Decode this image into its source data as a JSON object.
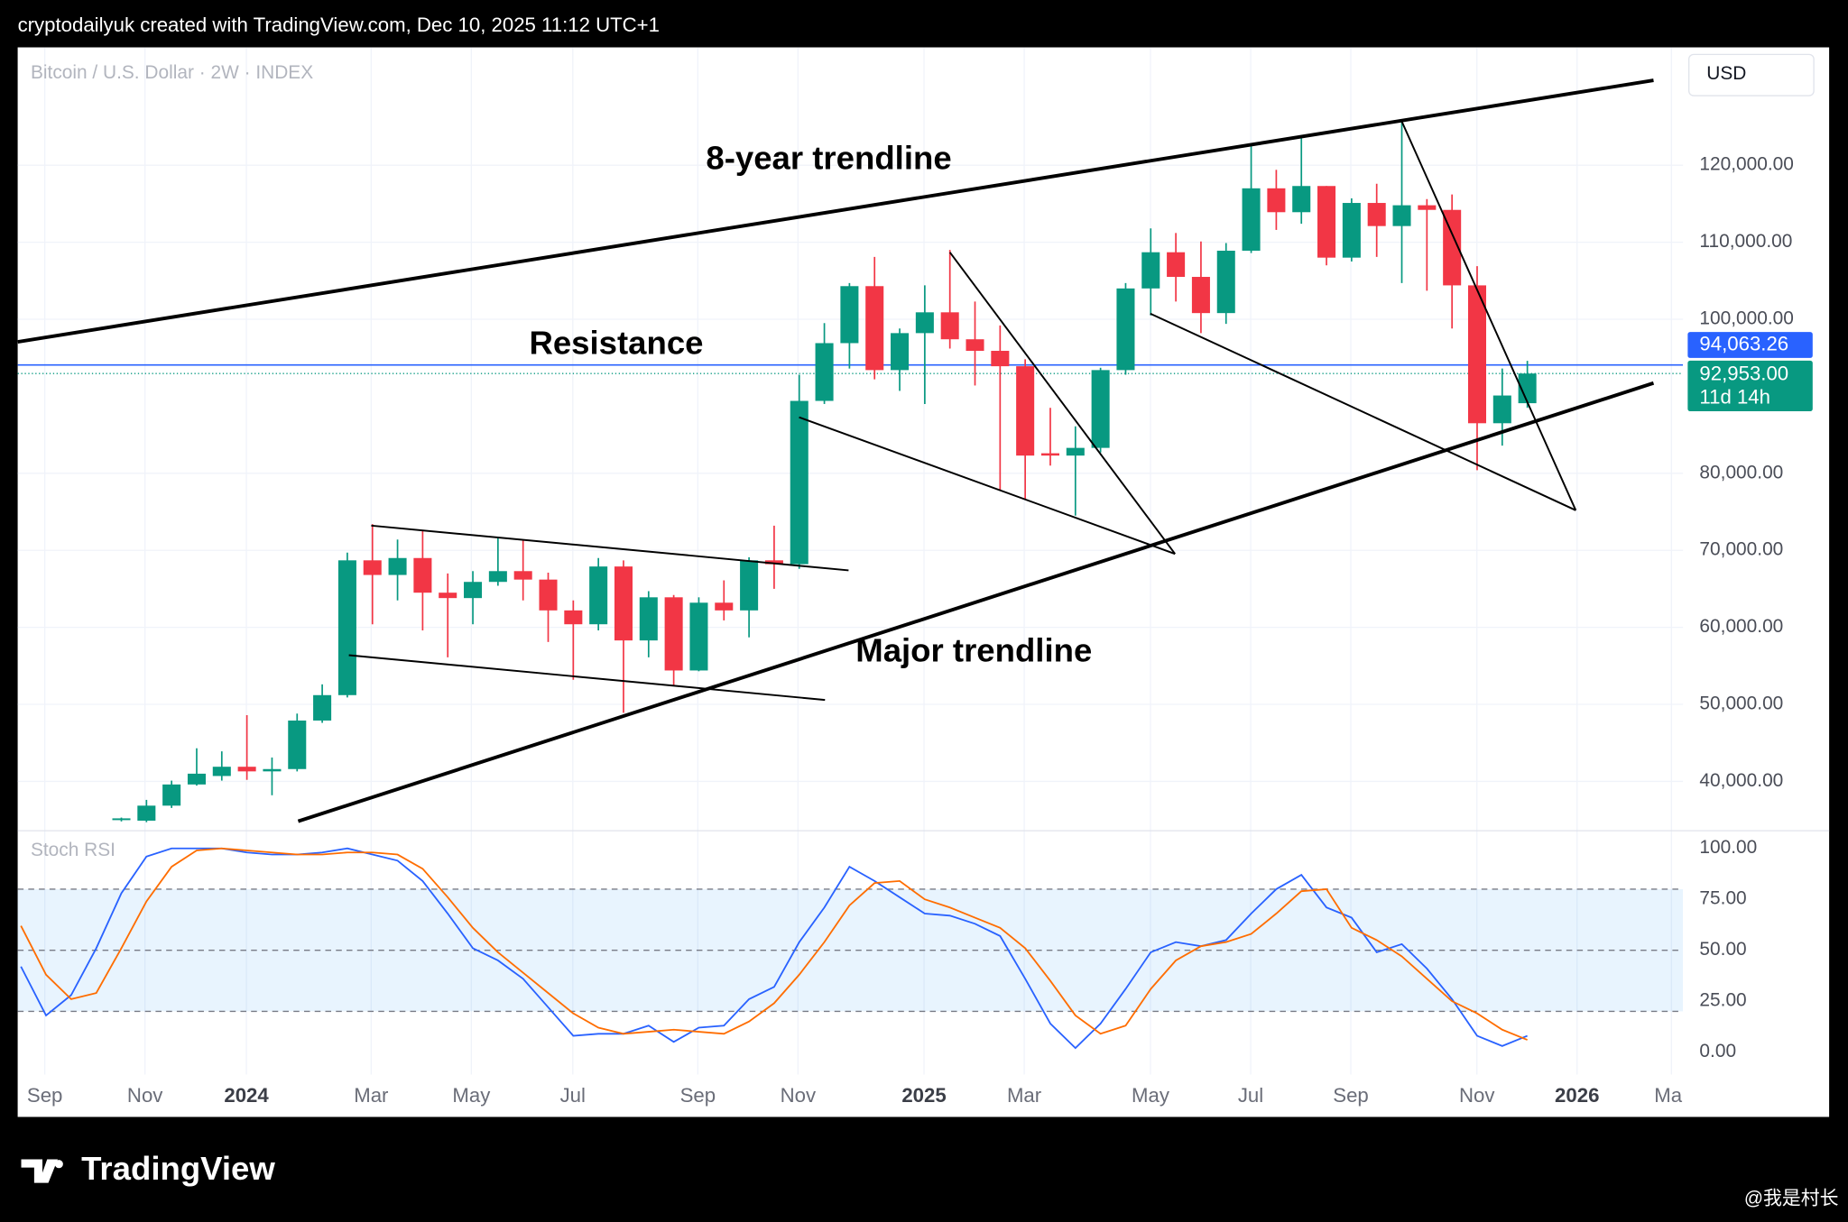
{
  "header": {
    "text": "cryptodailyuk created with TradingView.com, Dec 10, 2025 11:12 UTC+1"
  },
  "footer": {
    "logo": "TradingView",
    "watermark": "@我是村长"
  },
  "chart_data": [
    {
      "type": "candlestick",
      "title": "Bitcoin / U.S. Dollar · 2W · INDEX",
      "currency": "USD",
      "categories": [
        null,
        null,
        null,
        null,
        null,
        null,
        null,
        null,
        null,
        null,
        null,
        null,
        null,
        null,
        null,
        null,
        null,
        null,
        null,
        null,
        null,
        null,
        null,
        null,
        null,
        null,
        null,
        null,
        null,
        null,
        null,
        null,
        null,
        null,
        null,
        null,
        null,
        null,
        null,
        null,
        null,
        null,
        null,
        null,
        null,
        null,
        null,
        null,
        null,
        null,
        null,
        null,
        null,
        null,
        null,
        null,
        null,
        null,
        null,
        null,
        null
      ],
      "open": [
        null,
        null,
        null,
        null,
        35000,
        34900,
        36850,
        39600,
        40700,
        41900,
        41300,
        41600,
        47900,
        51200,
        68700,
        66800,
        69000,
        64500,
        63800,
        65900,
        67300,
        66200,
        62200,
        60400,
        67900,
        58300,
        63900,
        54400,
        63200,
        62200,
        68700,
        68200,
        89400,
        96900,
        104300,
        93400,
        98200,
        100900,
        97400,
        95900,
        93900,
        82600,
        82300,
        83300,
        93400,
        104000,
        108700,
        105500,
        100800,
        108900,
        117000,
        113900,
        117300,
        108000,
        115100,
        112100,
        114800,
        114200,
        104400,
        86500,
        89100
      ],
      "high": [
        null,
        null,
        null,
        null,
        35300,
        37600,
        40100,
        44300,
        43900,
        48600,
        43100,
        48800,
        52600,
        69700,
        73400,
        71400,
        72500,
        67000,
        67300,
        71600,
        71400,
        67100,
        63500,
        69000,
        68700,
        64700,
        64200,
        63900,
        66100,
        69100,
        73200,
        92800,
        99500,
        104700,
        108100,
        98800,
        104400,
        109000,
        102300,
        99200,
        94800,
        88500,
        86100,
        93700,
        104700,
        111800,
        111200,
        110100,
        109900,
        122800,
        119400,
        123900,
        117300,
        115700,
        117600,
        125800,
        115600,
        116200,
        106900,
        93600,
        94600
      ],
      "low": [
        null,
        null,
        null,
        null,
        34800,
        34700,
        36550,
        39450,
        40100,
        40200,
        38200,
        41300,
        47600,
        50900,
        60400,
        63500,
        59600,
        56100,
        60400,
        65400,
        63500,
        58100,
        53200,
        59600,
        48900,
        56100,
        52400,
        54300,
        60900,
        58700,
        65000,
        67600,
        89000,
        93600,
        92200,
        90700,
        89000,
        96200,
        91400,
        77800,
        76600,
        81000,
        74500,
        82700,
        92800,
        100500,
        102300,
        98200,
        99400,
        108600,
        111600,
        112400,
        107000,
        107500,
        108100,
        104700,
        103700,
        98800,
        80400,
        83600,
        88500
      ],
      "close": [
        null,
        null,
        null,
        null,
        35200,
        36850,
        39600,
        41000,
        41900,
        41300,
        41600,
        47900,
        51200,
        68700,
        66800,
        69000,
        64500,
        63800,
        65900,
        67300,
        66200,
        62200,
        60400,
        67900,
        58300,
        63900,
        54400,
        63200,
        62200,
        68700,
        68200,
        89400,
        96900,
        104300,
        93400,
        98200,
        100900,
        97400,
        95900,
        93900,
        82300,
        82300,
        83300,
        93400,
        104000,
        108700,
        105500,
        100800,
        108900,
        117000,
        113900,
        117300,
        108000,
        115100,
        112100,
        114800,
        114200,
        104400,
        86500,
        90100,
        92953
      ],
      "up_color": "#089981",
      "down_color": "#f23645",
      "xlim": [
        -0.13,
        66.2
      ],
      "ylim": [
        33600,
        135300
      ],
      "yticks": [
        {
          "value": 40000,
          "label": "40,000.00"
        },
        {
          "value": 50000,
          "label": "50,000.00"
        },
        {
          "value": 60000,
          "label": "60,000.00"
        },
        {
          "value": 70000,
          "label": "70,000.00"
        },
        {
          "value": 80000,
          "label": "80,000.00"
        },
        {
          "value": 100000,
          "label": "100,000.00"
        },
        {
          "value": 110000,
          "label": "110,000.00"
        },
        {
          "value": 120000,
          "label": "120,000.00"
        }
      ],
      "grid": true,
      "resistance": {
        "value": 94063.26,
        "label": "94,063.26",
        "color": "#2962ff"
      },
      "last_price": {
        "value": 92953,
        "label": "92,953.00",
        "countdown": "11d 14h"
      },
      "annotations": [
        "8-year trendline",
        "Resistance",
        "Major trendline"
      ]
    },
    {
      "type": "line",
      "title": "Stoch RSI",
      "categories": [
        null,
        null,
        null,
        null,
        null,
        null,
        null,
        null,
        null,
        null,
        null,
        null,
        null,
        null,
        null,
        null,
        null,
        null,
        null,
        null,
        null,
        null,
        null,
        null,
        null,
        null,
        null,
        null,
        null,
        null,
        null,
        null,
        null,
        null,
        null,
        null,
        null,
        null,
        null,
        null,
        null,
        null,
        null,
        null,
        null,
        null,
        null,
        null,
        null,
        null,
        null,
        null,
        null,
        null,
        null,
        null,
        null,
        null,
        null,
        null,
        null
      ],
      "series": [
        {
          "color": "#2962ff",
          "values": [
            42,
            18,
            28,
            51,
            78,
            96,
            100,
            100,
            100,
            98,
            97,
            97,
            98,
            100,
            97,
            94,
            84,
            68,
            51,
            45,
            36,
            22,
            8,
            9,
            9,
            13,
            5,
            12,
            13,
            26,
            32,
            54,
            71,
            91,
            84,
            76,
            68,
            67,
            63,
            57,
            36,
            14,
            2,
            14,
            31,
            49,
            54,
            52,
            55,
            68,
            80,
            87,
            71,
            66,
            49,
            53,
            41,
            26,
            8,
            3,
            8
          ]
        },
        {
          "color": "#ff6d00",
          "values": [
            62,
            38,
            26,
            29,
            51,
            74,
            91,
            99,
            100,
            99,
            98,
            97,
            97,
            98,
            98,
            97,
            90,
            76,
            61,
            49,
            39,
            29,
            19,
            12,
            9,
            10,
            11,
            10,
            9,
            15,
            24,
            38,
            54,
            72,
            83,
            84,
            75,
            71,
            66,
            61,
            51,
            35,
            18,
            9,
            13,
            31,
            45,
            52,
            54,
            58,
            68,
            79,
            80,
            61,
            55,
            47,
            36,
            25,
            19,
            11,
            6
          ]
        }
      ],
      "xlim": [
        -0.13,
        66.2
      ],
      "ylim": [
        -11,
        108.7
      ],
      "yticks": [
        {
          "value": 0,
          "label": "0.00"
        },
        {
          "value": 25,
          "label": "25.00"
        },
        {
          "value": 50,
          "label": "50.00"
        },
        {
          "value": 75,
          "label": "75.00"
        },
        {
          "value": 100,
          "label": "100.00"
        }
      ],
      "band": [
        20,
        80
      ],
      "band_lines": [
        20,
        50,
        80
      ],
      "xticks": [
        {
          "value": 0.95,
          "label": "Sep"
        },
        {
          "value": 4.94,
          "label": "Nov"
        },
        {
          "value": 8.98,
          "label": "2024"
        },
        {
          "value": 13.95,
          "label": "Mar"
        },
        {
          "value": 17.94,
          "label": "May"
        },
        {
          "value": 21.98,
          "label": "Jul"
        },
        {
          "value": 26.96,
          "label": "Sep"
        },
        {
          "value": 30.95,
          "label": "Nov"
        },
        {
          "value": 35.97,
          "label": "2025"
        },
        {
          "value": 39.96,
          "label": "Mar"
        },
        {
          "value": 44.99,
          "label": "May"
        },
        {
          "value": 48.98,
          "label": "Jul"
        },
        {
          "value": 52.97,
          "label": "Sep"
        },
        {
          "value": 57.99,
          "label": "Nov"
        },
        {
          "value": 61.98,
          "label": "2026"
        },
        {
          "value": 65.74,
          "label": "Mar"
        }
      ]
    }
  ]
}
